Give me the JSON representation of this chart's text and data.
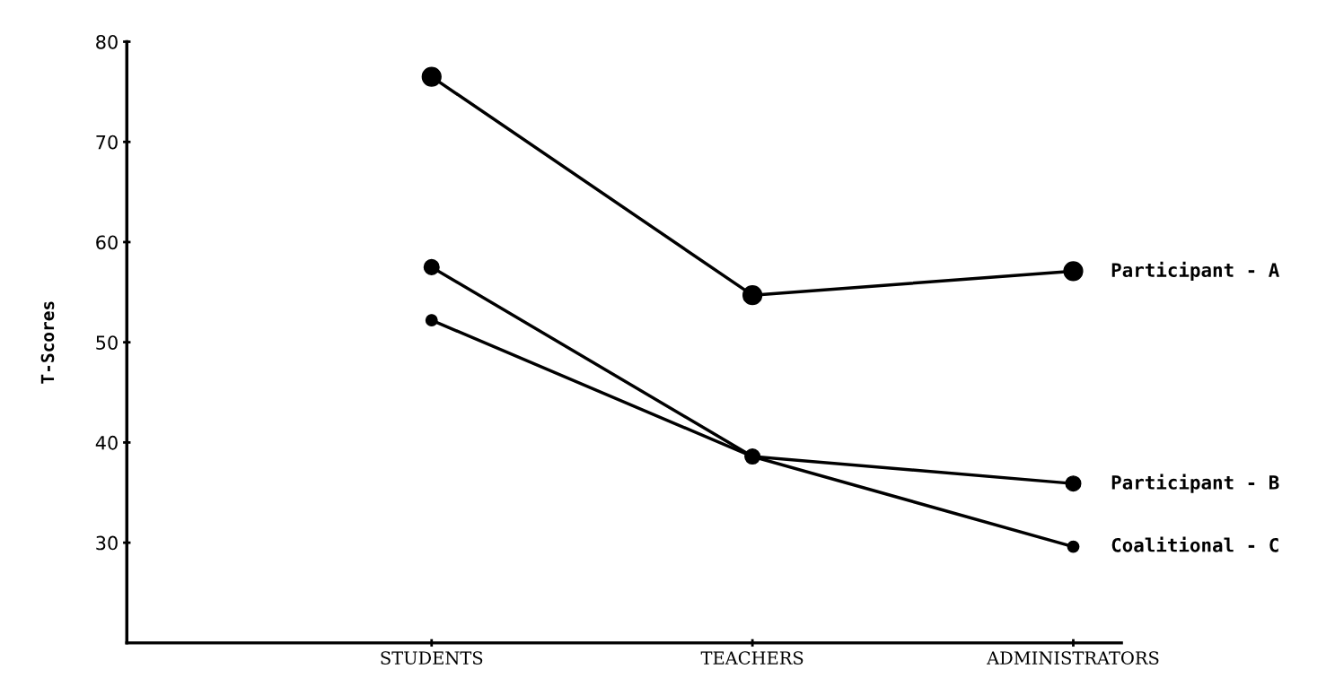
{
  "chart_data": {
    "type": "line",
    "ylabel": "T-Scores",
    "categories": [
      "STUDENTS",
      "TEACHERS",
      "ADMINISTRATORS"
    ],
    "series": [
      {
        "name": "Participant - A",
        "color": "#000000",
        "values": [
          76.5,
          54.7,
          57.1
        ]
      },
      {
        "name": "Participant - B",
        "color": "#000000",
        "values": [
          57.5,
          38.6,
          35.9
        ]
      },
      {
        "name": "Coalitional - C",
        "color": "#000000",
        "values": [
          52.2,
          38.6,
          29.6
        ]
      }
    ],
    "ylim": [
      20,
      80
    ],
    "yticks": [
      30,
      40,
      50,
      60,
      70,
      80
    ],
    "marker": "circle",
    "line_style": "solid",
    "grid": false,
    "legend": false
  }
}
